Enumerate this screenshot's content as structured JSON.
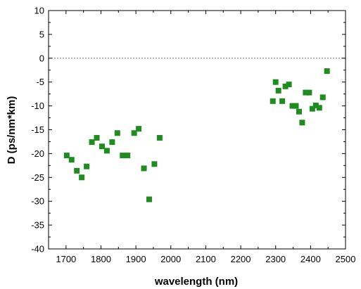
{
  "chart_data": {
    "type": "scatter",
    "title": "",
    "xlabel": "wavelength (nm)",
    "ylabel": "D (ps/nm*km)",
    "xlim": [
      1650,
      2500
    ],
    "ylim": [
      -40,
      10
    ],
    "x_ticks": [
      1700,
      1800,
      1900,
      2000,
      2100,
      2200,
      2300,
      2400,
      2500
    ],
    "y_ticks": [
      10,
      5,
      0,
      -5,
      -10,
      -15,
      -20,
      -25,
      -30,
      -35,
      -40
    ],
    "reference_line": {
      "y": 0,
      "style": "dotted"
    },
    "grid": false,
    "legend": false,
    "marker_color": "#1e8c1e",
    "series": [
      {
        "marker": "square",
        "points": [
          {
            "x": 1702,
            "y": -20.4
          },
          {
            "x": 1716,
            "y": -21.3
          },
          {
            "x": 1731,
            "y": -23.6
          },
          {
            "x": 1745,
            "y": -25.0
          },
          {
            "x": 1759,
            "y": -22.7
          },
          {
            "x": 1774,
            "y": -17.6
          },
          {
            "x": 1788,
            "y": -16.7
          },
          {
            "x": 1803,
            "y": -18.5
          },
          {
            "x": 1817,
            "y": -19.4
          },
          {
            "x": 1832,
            "y": -17.6
          },
          {
            "x": 1847,
            "y": -15.7
          },
          {
            "x": 1862,
            "y": -20.4
          },
          {
            "x": 1876,
            "y": -20.4
          },
          {
            "x": 1895,
            "y": -15.7
          },
          {
            "x": 1908,
            "y": -14.8
          },
          {
            "x": 1923,
            "y": -23.1
          },
          {
            "x": 1938,
            "y": -29.6
          },
          {
            "x": 1953,
            "y": -22.2
          },
          {
            "x": 1968,
            "y": -16.7
          },
          {
            "x": 2292,
            "y": -9.0
          },
          {
            "x": 2300,
            "y": -5.0
          },
          {
            "x": 2308,
            "y": -6.8
          },
          {
            "x": 2319,
            "y": -9.0
          },
          {
            "x": 2328,
            "y": -5.9
          },
          {
            "x": 2338,
            "y": -5.5
          },
          {
            "x": 2348,
            "y": -10.0
          },
          {
            "x": 2358,
            "y": -10.0
          },
          {
            "x": 2367,
            "y": -11.2
          },
          {
            "x": 2376,
            "y": -13.5
          },
          {
            "x": 2386,
            "y": -7.2
          },
          {
            "x": 2396,
            "y": -7.2
          },
          {
            "x": 2405,
            "y": -10.6
          },
          {
            "x": 2415,
            "y": -9.9
          },
          {
            "x": 2425,
            "y": -10.4
          },
          {
            "x": 2435,
            "y": -8.2
          },
          {
            "x": 2447,
            "y": -2.7
          }
        ]
      }
    ]
  }
}
